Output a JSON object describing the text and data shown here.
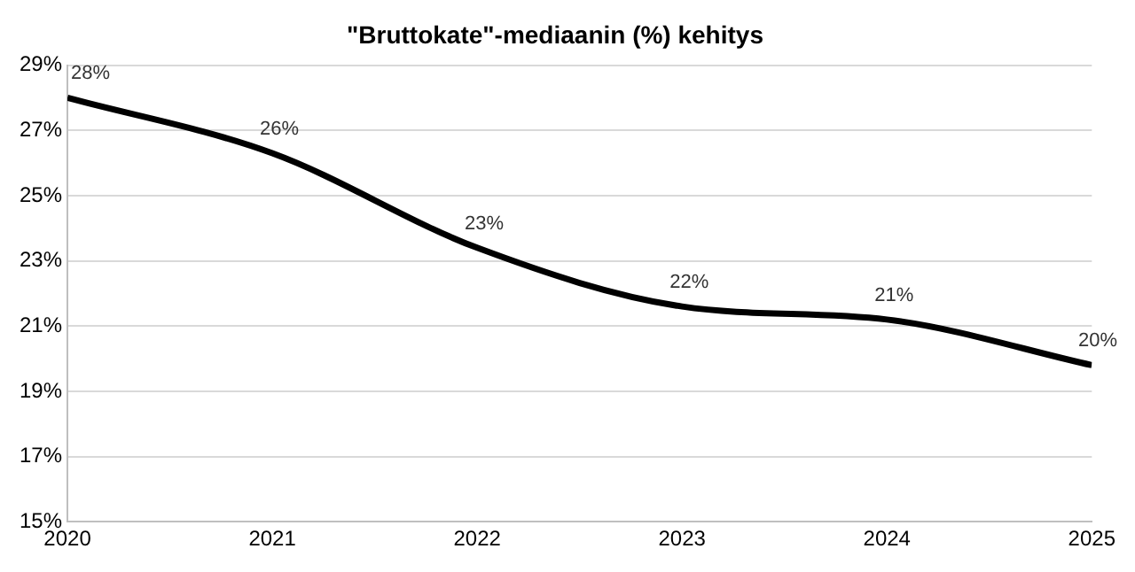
{
  "chart_data": {
    "type": "line",
    "title": "\"Bruttokate\"-mediaanin (%) kehitys",
    "x": [
      2020,
      2021,
      2022,
      2023,
      2024,
      2025
    ],
    "series": [
      {
        "color": "#000000",
        "values": [
          28.0,
          26.3,
          23.4,
          21.6,
          21.2,
          19.8
        ],
        "value_labels": [
          "28%",
          "26%",
          "23%",
          "22%",
          "21%",
          "20%"
        ]
      }
    ],
    "xlim": [
      2020,
      2025
    ],
    "xticks": [
      2020,
      2021,
      2022,
      2023,
      2024,
      2025
    ],
    "ylim": [
      15,
      29
    ],
    "yticks": [
      {
        "value": 15,
        "label": "15%"
      },
      {
        "value": 17,
        "label": "17%"
      },
      {
        "value": 19,
        "label": "19%"
      },
      {
        "value": 21,
        "label": "21%"
      },
      {
        "value": 23,
        "label": "23%"
      },
      {
        "value": 25,
        "label": "25%"
      },
      {
        "value": 27,
        "label": "27%"
      },
      {
        "value": 29,
        "label": "29%"
      }
    ],
    "grid": "y",
    "legend": false,
    "marker": "none",
    "line_style": "solid"
  }
}
